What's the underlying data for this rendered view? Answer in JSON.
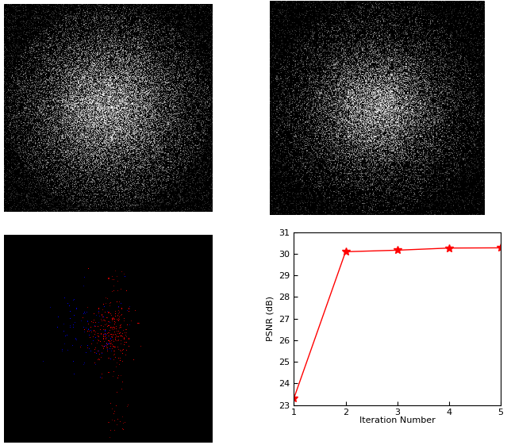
{
  "chart_data": {
    "type": "line",
    "x": [
      1,
      2,
      3,
      4,
      5
    ],
    "series": [
      {
        "name": "PSNR",
        "color": "#ff0000",
        "marker": "star",
        "line_style": "solid",
        "values": [
          23.3,
          30.1,
          30.17,
          30.27,
          30.28
        ]
      }
    ],
    "x_label": "Iteration Number",
    "y_label": "PSNR (dB)",
    "xlim": [
      1,
      5
    ],
    "xticks": [
      1,
      2,
      3,
      4,
      5
    ],
    "ylim": [
      23,
      31
    ],
    "yticks": [
      23,
      24,
      25,
      26,
      27,
      28,
      29,
      30,
      31
    ],
    "grid": false
  }
}
